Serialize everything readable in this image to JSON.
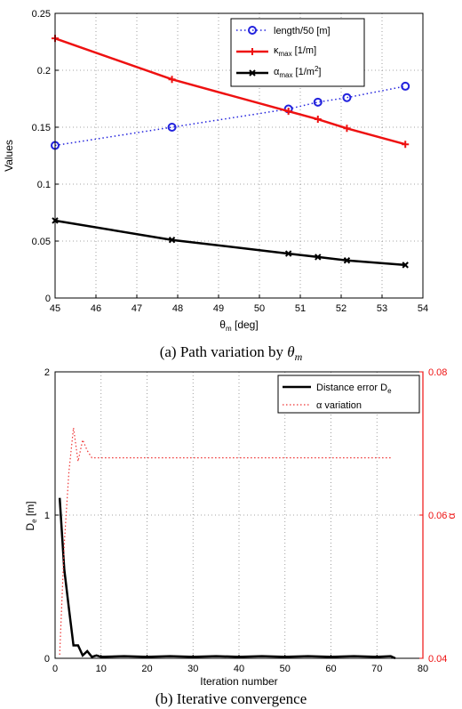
{
  "chart_data": [
    {
      "type": "line",
      "caption": "(a) Path variation by θm",
      "caption_prefix": "(a) Path variation by ",
      "caption_var": "θ",
      "caption_sub": "m",
      "xlabel": "θm [deg]",
      "xlabel_main": "θ",
      "xlabel_sub": "m",
      "xlabel_unit": " [deg]",
      "ylabel": "Values",
      "xlim": [
        45,
        54
      ],
      "ylim": [
        0,
        0.25
      ],
      "xticks": [
        "45",
        "46",
        "47",
        "48",
        "49",
        "50",
        "51",
        "52",
        "53",
        "54"
      ],
      "yticks": [
        "0",
        "0.05",
        "0.1",
        "0.15",
        "0.2",
        "0.25"
      ],
      "grid": true,
      "legend_position": "top-right",
      "series": [
        {
          "name": "length/50 [m]",
          "label_main": "length/50 [m]",
          "label_sub": "",
          "label_unit": "",
          "color": "#2222dd",
          "marker": "circle",
          "line": "dotted",
          "x": [
            45,
            47.86,
            50.71,
            51.43,
            52.14,
            53.57
          ],
          "y": [
            0.134,
            0.15,
            0.166,
            0.172,
            0.176,
            0.186
          ]
        },
        {
          "name": "κmax [1/m]",
          "label_main": "κ",
          "label_sub": "max",
          "label_unit": " [1/m]",
          "color": "#ee1111",
          "marker": "plus",
          "line": "solid",
          "x": [
            45,
            47.86,
            50.71,
            51.43,
            52.14,
            53.57
          ],
          "y": [
            0.228,
            0.192,
            0.164,
            0.157,
            0.149,
            0.135
          ]
        },
        {
          "name": "αmax [1/m2]",
          "label_main": "α",
          "label_sub": "max",
          "label_unit": " [1/m",
          "label_sup": "2",
          "label_end": "]",
          "color": "#000000",
          "marker": "cross",
          "line": "solid",
          "x": [
            45,
            47.86,
            50.71,
            51.43,
            52.14,
            53.57
          ],
          "y": [
            0.068,
            0.051,
            0.039,
            0.036,
            0.033,
            0.029
          ]
        }
      ]
    },
    {
      "type": "line",
      "caption": "(b) Iterative convergence",
      "xlabel": "Iteration number",
      "ylabel_left": "De [m]",
      "ylabel_left_main": "D",
      "ylabel_left_sub": "e",
      "ylabel_left_unit": " [m]",
      "ylabel_right": "α",
      "xlim": [
        0,
        80
      ],
      "ylim_left": [
        0,
        2
      ],
      "ylim_right": [
        0.04,
        0.08
      ],
      "xticks": [
        "0",
        "10",
        "20",
        "30",
        "40",
        "50",
        "60",
        "70",
        "80"
      ],
      "yticks_left": [
        "0",
        "1",
        "2"
      ],
      "yticks_right": [
        "0.04",
        "0.06",
        "0.08"
      ],
      "grid": true,
      "legend_position": "top-right",
      "series": [
        {
          "name": "Distance error De",
          "label_main": "Distance error D",
          "label_sub": "e",
          "axis": "left",
          "color": "#000000",
          "line": "solid",
          "x": [
            1,
            2,
            3,
            4,
            5,
            6,
            7,
            8,
            9,
            10,
            15,
            20,
            25,
            30,
            35,
            40,
            45,
            50,
            55,
            60,
            65,
            70,
            73,
            74
          ],
          "y": [
            1.12,
            0.62,
            0.35,
            0.09,
            0.09,
            0.02,
            0.05,
            0.01,
            0.02,
            0.01,
            0.015,
            0.01,
            0.015,
            0.01,
            0.015,
            0.01,
            0.015,
            0.01,
            0.015,
            0.01,
            0.015,
            0.01,
            0.015,
            0.0
          ]
        },
        {
          "name": "α variation",
          "label_main": "α variation",
          "label_sub": "",
          "axis": "right",
          "color": "#ee3333",
          "line": "dotted",
          "x": [
            1,
            2,
            3,
            4,
            5,
            6,
            7,
            8,
            9,
            10,
            20,
            30,
            40,
            50,
            60,
            70,
            73
          ],
          "y": [
            0.0405,
            0.056,
            0.066,
            0.0722,
            0.0675,
            0.0705,
            0.069,
            0.068,
            0.068,
            0.068,
            0.068,
            0.068,
            0.068,
            0.068,
            0.068,
            0.068,
            0.068
          ]
        }
      ]
    }
  ]
}
